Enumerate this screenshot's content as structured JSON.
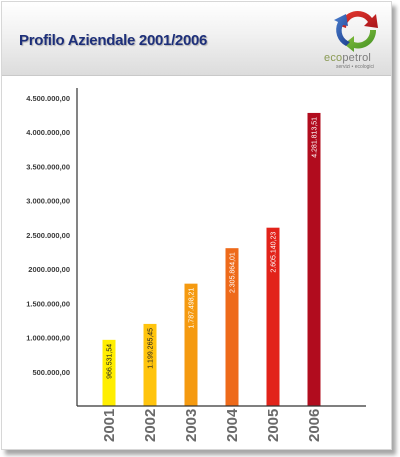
{
  "header": {
    "title": "Profilo Aziendale 2001/2006"
  },
  "logo": {
    "name_main": "eco",
    "name_tail": "petrol",
    "tagline": "servizi • ecologici"
  },
  "chart_data": {
    "type": "bar",
    "title": "Profilo Aziendale 2001/2006",
    "categories": [
      "2001",
      "2002",
      "2003",
      "2004",
      "2005",
      "2006"
    ],
    "values": [
      966531.54,
      1199265.45,
      1787498.21,
      2305864.01,
      2605140.23,
      4281813.51
    ],
    "value_labels": [
      "966.531,54",
      "1.199.265,45",
      "1.787.498,21",
      "2.305.864,01",
      "2.605.140,23",
      "4.281.813,51"
    ],
    "bar_colors": [
      "#ffee00",
      "#ffc40d",
      "#f59a10",
      "#ee6a1a",
      "#e2231a",
      "#b10c1e"
    ],
    "yticks": [
      500000,
      1000000,
      1500000,
      2000000,
      2500000,
      3000000,
      3500000,
      4000000,
      4500000
    ],
    "ytick_labels": [
      "500.000,00",
      "1.000.000,00",
      "1.500.000,00",
      "2000.000,00",
      "2.500.000,00",
      "3.000.000,00",
      "3.500.000,00",
      "4.000.000,00",
      "4.500.000,00"
    ],
    "ylim": [
      0,
      4500000
    ],
    "xlabel": "",
    "ylabel": "",
    "grid": false
  }
}
